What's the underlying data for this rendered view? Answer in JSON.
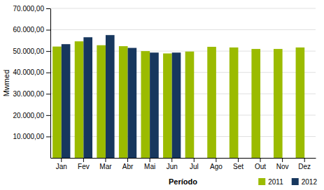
{
  "chart_data": {
    "type": "bar",
    "categories": [
      "Jan",
      "Fev",
      "Mar",
      "Abr",
      "Mai",
      "Jun",
      "Jul",
      "Ago",
      "Set",
      "Out",
      "Nov",
      "Dez"
    ],
    "series": [
      {
        "name": "2011",
        "color": "#9bbb00",
        "values": [
          52128.16,
          54567.39,
          52747.46,
          52300.0,
          50000.0,
          48900.0,
          49800.0,
          52000.0,
          51700.0,
          51000.0,
          51000.0,
          51700.0
        ]
      },
      {
        "name": "2012",
        "color": "#17375e",
        "values": [
          53248.63,
          56484.95,
          57500.0,
          51500.0,
          49300.0,
          49300.0,
          null,
          null,
          null,
          null,
          null,
          null
        ]
      }
    ],
    "xlabel": "Período",
    "ylabel": "Mwmed",
    "ylim": [
      0,
      70000
    ],
    "yticks": [
      {
        "value": 10000,
        "label": "10.000,00"
      },
      {
        "value": 20000,
        "label": "20.000,00"
      },
      {
        "value": 30000,
        "label": "30.000,00"
      },
      {
        "value": 40000,
        "label": "40.000,00"
      },
      {
        "value": 50000,
        "label": "50.000,00"
      },
      {
        "value": 60000,
        "label": "60.000,00"
      },
      {
        "value": 70000,
        "label": "70.000,00"
      }
    ],
    "grid": true,
    "legend": "lower right"
  }
}
